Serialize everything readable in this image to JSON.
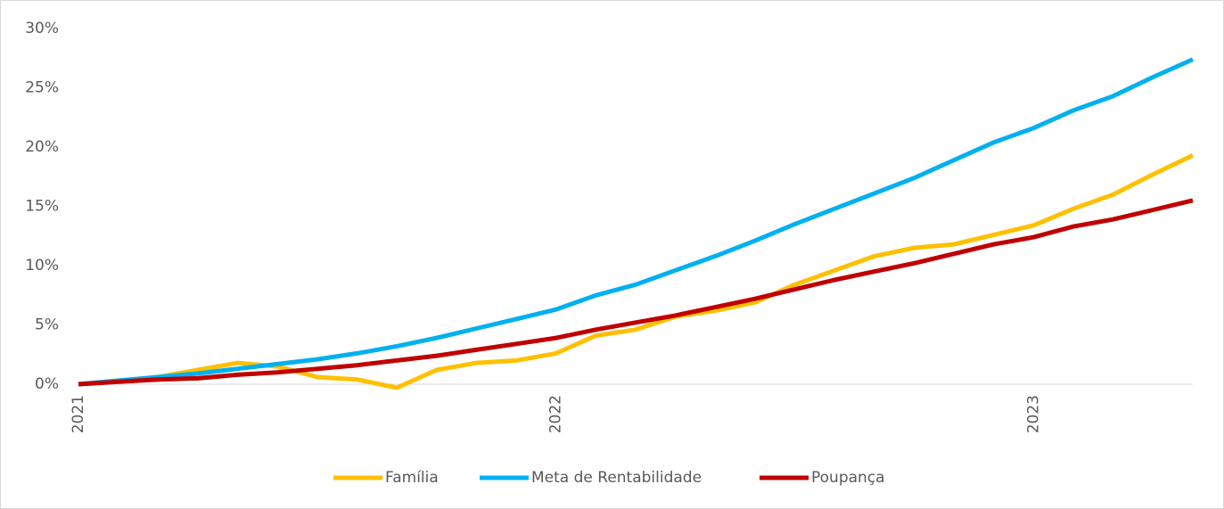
{
  "chart_data": {
    "type": "line",
    "categories": [
      "2021",
      null,
      null,
      null,
      null,
      null,
      null,
      null,
      null,
      null,
      null,
      null,
      "2022",
      null,
      null,
      null,
      null,
      null,
      null,
      null,
      null,
      null,
      null,
      null,
      "2023",
      null,
      null,
      null,
      null
    ],
    "series": [
      {
        "name": "Família",
        "color": "#ffc000",
        "values": [
          0,
          0.3,
          0.6,
          1.2,
          1.8,
          1.5,
          0.6,
          0.4,
          -0.3,
          1.2,
          1.8,
          2.0,
          2.6,
          4.1,
          4.6,
          5.7,
          6.2,
          6.9,
          8.4,
          9.6,
          10.8,
          11.5,
          11.8,
          12.6,
          13.4,
          14.8,
          16.0,
          17.7,
          19.3
        ]
      },
      {
        "name": "Meta de Rentabilidade",
        "color": "#00b0f0",
        "values": [
          0,
          0.3,
          0.6,
          0.9,
          1.3,
          1.7,
          2.1,
          2.6,
          3.2,
          3.9,
          4.7,
          5.5,
          6.3,
          7.5,
          8.4,
          9.6,
          10.8,
          12.1,
          13.5,
          14.8,
          16.1,
          17.4,
          18.9,
          20.4,
          21.6,
          23.1,
          24.3,
          25.9,
          27.4
        ]
      },
      {
        "name": "Poupança",
        "color": "#c00000",
        "values": [
          0,
          0.2,
          0.4,
          0.5,
          0.8,
          1.0,
          1.3,
          1.6,
          2.0,
          2.4,
          2.9,
          3.4,
          3.9,
          4.6,
          5.2,
          5.8,
          6.5,
          7.2,
          8.0,
          8.8,
          9.5,
          10.2,
          11.0,
          11.8,
          12.4,
          13.3,
          13.9,
          14.7,
          15.5
        ]
      }
    ],
    "ylim": [
      0,
      30
    ],
    "yticks": [
      {
        "value": 0,
        "label": "0%"
      },
      {
        "value": 5,
        "label": "5%"
      },
      {
        "value": 10,
        "label": "10%"
      },
      {
        "value": 15,
        "label": "15%"
      },
      {
        "value": 20,
        "label": "20%"
      },
      {
        "value": 25,
        "label": "25%"
      },
      {
        "value": 30,
        "label": "30%"
      }
    ],
    "grid": false
  }
}
